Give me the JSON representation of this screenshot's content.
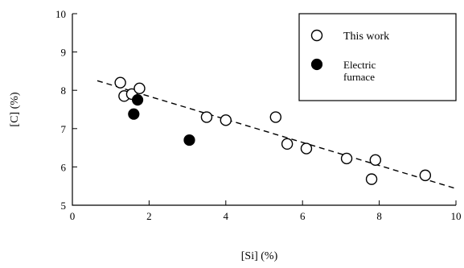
{
  "chart_data": {
    "type": "scatter",
    "xlabel": "[Si] (%)",
    "ylabel": "[C] (%)",
    "xlim": [
      0,
      10
    ],
    "ylim": [
      5,
      10
    ],
    "xticks": [
      0,
      2,
      4,
      6,
      8,
      10
    ],
    "yticks": [
      5,
      6,
      7,
      8,
      9,
      10
    ],
    "x_tick_labels": [
      "0",
      "2",
      "4",
      "6",
      "8",
      "10"
    ],
    "y_tick_labels": [
      "5",
      "6",
      "7",
      "8",
      "9",
      "10"
    ],
    "grid": false,
    "legend_position": "top-right",
    "series": [
      {
        "name": "This work",
        "marker": "open-circle",
        "color": "#000000",
        "points": [
          {
            "x": 1.25,
            "y": 8.2
          },
          {
            "x": 1.35,
            "y": 7.85
          },
          {
            "x": 1.55,
            "y": 7.9
          },
          {
            "x": 1.75,
            "y": 8.05
          },
          {
            "x": 3.5,
            "y": 7.3
          },
          {
            "x": 4.0,
            "y": 7.22
          },
          {
            "x": 5.3,
            "y": 7.3
          },
          {
            "x": 5.6,
            "y": 6.6
          },
          {
            "x": 6.1,
            "y": 6.48
          },
          {
            "x": 7.15,
            "y": 6.22
          },
          {
            "x": 7.8,
            "y": 5.68
          },
          {
            "x": 7.9,
            "y": 6.18
          },
          {
            "x": 9.2,
            "y": 5.78
          }
        ]
      },
      {
        "name": "Electric furnace",
        "legend_lines": [
          "Electric",
          "furnace"
        ],
        "marker": "filled-circle",
        "color": "#000000",
        "points": [
          {
            "x": 1.6,
            "y": 7.38
          },
          {
            "x": 1.7,
            "y": 7.75
          },
          {
            "x": 3.05,
            "y": 6.7
          }
        ]
      }
    ],
    "trend_line": {
      "style": "dashed",
      "from": {
        "x": 0.65,
        "y": 8.25
      },
      "to": {
        "x": 9.95,
        "y": 5.45
      }
    }
  }
}
